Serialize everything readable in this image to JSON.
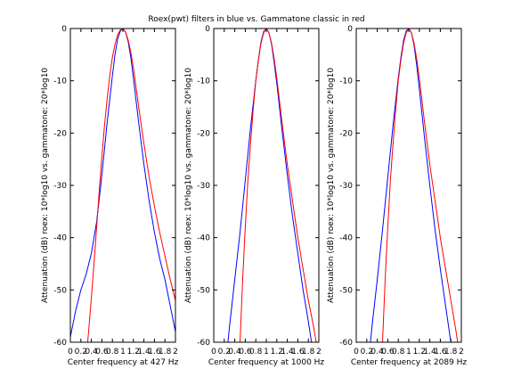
{
  "title": "Roex(pwt) filters in blue vs. Gammatone classic in red",
  "colors": {
    "roex": "#0000ff",
    "gammatone": "#ff0000",
    "axis": "#000000",
    "background": "#ffffff"
  },
  "chart_data": [
    {
      "type": "line",
      "xlabel": "Center frequency at 427 Hz",
      "ylabel": "Attenuation (dB) roex: 10*log10 vs. gammatone: 20*log10",
      "xlim": [
        0,
        2
      ],
      "ylim": [
        -60,
        0
      ],
      "xticks": [
        0,
        0.2,
        0.4,
        0.6,
        0.8,
        1,
        1.2,
        1.4,
        1.6,
        1.8,
        2
      ],
      "xtick_labels": [
        "0",
        "0.2",
        "0.4",
        "0.6",
        "0.8",
        "1",
        "1.2",
        "1.4",
        "1.6",
        "1.8",
        "2"
      ],
      "yticks": [
        0,
        -10,
        -20,
        -30,
        -40,
        -50,
        -60
      ],
      "ytick_labels": [
        "0",
        "-10",
        "-20",
        "-30",
        "-40",
        "-50",
        "-60"
      ],
      "series": [
        {
          "color": "blue",
          "x": [
            0,
            0.1,
            0.2,
            0.3,
            0.4,
            0.5,
            0.6,
            0.7,
            0.8,
            0.85,
            0.9,
            0.95,
            1.0,
            1.05,
            1.1,
            1.15,
            1.2,
            1.3,
            1.4,
            1.5,
            1.6,
            1.7,
            1.8,
            1.9,
            2.0
          ],
          "y": [
            -59,
            -54,
            -50,
            -47,
            -43,
            -37,
            -28,
            -18,
            -9,
            -5,
            -2,
            -0.5,
            0,
            -0.7,
            -2.5,
            -5.5,
            -9.5,
            -18,
            -26,
            -33,
            -39,
            -44,
            -48,
            -53,
            -58
          ]
        },
        {
          "color": "red",
          "x": [
            0.33,
            0.4,
            0.45,
            0.5,
            0.55,
            0.6,
            0.65,
            0.7,
            0.75,
            0.8,
            0.85,
            0.9,
            0.95,
            1.0,
            1.05,
            1.1,
            1.15,
            1.2,
            1.3,
            1.4,
            1.5,
            1.6,
            1.7,
            1.8,
            1.9,
            2.0
          ],
          "y": [
            -60,
            -51.5,
            -45,
            -38,
            -31,
            -24.5,
            -18.5,
            -13.5,
            -9,
            -5.5,
            -3,
            -1.2,
            -0.3,
            0,
            -0.7,
            -2.2,
            -4.5,
            -7.5,
            -15,
            -22,
            -28.5,
            -34,
            -39,
            -43.5,
            -48,
            -52
          ]
        }
      ]
    },
    {
      "type": "line",
      "xlabel": "Center frequency at 1000 Hz",
      "ylabel": "Attenuation (dB) roex: 10*log10 vs. gammatone: 20*log10",
      "xlim": [
        0,
        2
      ],
      "ylim": [
        -60,
        0
      ],
      "xticks": [
        0,
        0.2,
        0.4,
        0.6,
        0.8,
        1,
        1.2,
        1.4,
        1.6,
        1.8,
        2
      ],
      "xtick_labels": [
        "0",
        "0.2",
        "0.4",
        "0.6",
        "0.8",
        "1",
        "1.2",
        "1.4",
        "1.6",
        "1.8",
        "2"
      ],
      "yticks": [
        0,
        -10,
        -20,
        -30,
        -40,
        -50,
        -60
      ],
      "ytick_labels": [
        "0",
        "-10",
        "-20",
        "-30",
        "-40",
        "-50",
        "-60"
      ],
      "series": [
        {
          "color": "blue",
          "x": [
            0.27,
            0.3,
            0.4,
            0.5,
            0.6,
            0.7,
            0.8,
            0.85,
            0.9,
            0.95,
            1.0,
            1.05,
            1.1,
            1.15,
            1.2,
            1.3,
            1.4,
            1.5,
            1.6,
            1.7,
            1.8,
            1.86
          ],
          "y": [
            -60,
            -57,
            -48,
            -39,
            -29,
            -19,
            -10,
            -6,
            -2.5,
            -0.6,
            0,
            -0.8,
            -3,
            -6.5,
            -10.5,
            -19.5,
            -28,
            -36,
            -43,
            -50,
            -56,
            -60
          ]
        },
        {
          "color": "red",
          "x": [
            0.5,
            0.55,
            0.6,
            0.65,
            0.7,
            0.75,
            0.8,
            0.85,
            0.9,
            0.95,
            1.0,
            1.05,
            1.1,
            1.15,
            1.2,
            1.3,
            1.4,
            1.5,
            1.6,
            1.7,
            1.8,
            1.9,
            1.95
          ],
          "y": [
            -60,
            -48,
            -38,
            -29,
            -22,
            -15.5,
            -10,
            -6,
            -2.8,
            -0.8,
            0,
            -0.8,
            -2.8,
            -5.8,
            -9.5,
            -18,
            -26,
            -33,
            -40,
            -46,
            -52,
            -57,
            -60
          ]
        }
      ]
    },
    {
      "type": "line",
      "xlabel": "Center frequency at 2089 Hz",
      "ylabel": "Attenuation (dB) roex: 10*log10 vs. gammatone: 20*log10",
      "xlim": [
        0,
        2
      ],
      "ylim": [
        -60,
        0
      ],
      "xticks": [
        0,
        0.2,
        0.4,
        0.6,
        0.8,
        1,
        1.2,
        1.4,
        1.6,
        1.8,
        2
      ],
      "xtick_labels": [
        "0",
        "0.2",
        "0.4",
        "0.6",
        "0.8",
        "1",
        "1.2",
        "1.4",
        "1.6",
        "1.8",
        "2"
      ],
      "yticks": [
        0,
        -10,
        -20,
        -30,
        -40,
        -50,
        -60
      ],
      "ytick_labels": [
        "0",
        "-10",
        "-20",
        "-30",
        "-40",
        "-50",
        "-60"
      ],
      "series": [
        {
          "color": "blue",
          "x": [
            0.27,
            0.3,
            0.4,
            0.5,
            0.6,
            0.7,
            0.8,
            0.85,
            0.9,
            0.95,
            1.0,
            1.05,
            1.1,
            1.15,
            1.2,
            1.3,
            1.4,
            1.5,
            1.6,
            1.7,
            1.8
          ],
          "y": [
            -60,
            -57,
            -48,
            -38.5,
            -28.5,
            -18.5,
            -9.5,
            -5.5,
            -2.3,
            -0.5,
            0,
            -0.8,
            -3.2,
            -7,
            -11.5,
            -21,
            -30,
            -38.5,
            -46,
            -53,
            -60
          ]
        },
        {
          "color": "red",
          "x": [
            0.5,
            0.55,
            0.6,
            0.65,
            0.7,
            0.75,
            0.8,
            0.85,
            0.9,
            0.95,
            1.0,
            1.05,
            1.1,
            1.15,
            1.2,
            1.3,
            1.4,
            1.5,
            1.6,
            1.7,
            1.8,
            1.9,
            1.93
          ],
          "y": [
            -60,
            -48,
            -38,
            -29,
            -22,
            -15.5,
            -10,
            -6,
            -2.8,
            -0.8,
            0,
            -0.8,
            -2.8,
            -5.8,
            -9.5,
            -18,
            -26,
            -33,
            -40,
            -46,
            -52,
            -58,
            -60
          ]
        }
      ]
    }
  ]
}
